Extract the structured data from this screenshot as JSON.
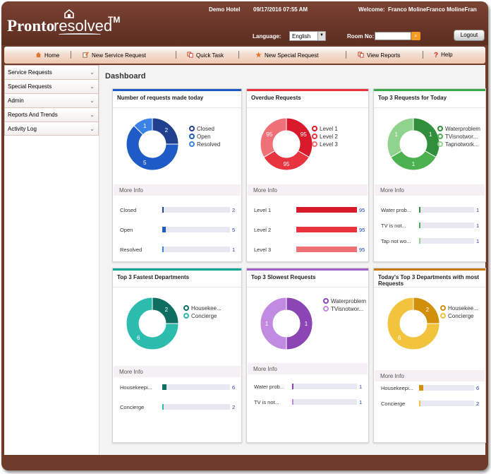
{
  "header": {
    "hotel": "Demo Hotel",
    "datetime": "09/17/2016 07:55 AM",
    "welcome_label": "Welcome:",
    "user": "Franco MolineFranco MolineFran",
    "logo_main": "Pronto",
    "logo_sub": "resolved",
    "logo_tm": "TM",
    "language_label": "Language:",
    "language_value": "English",
    "room_label": "Room No:",
    "room_value": "",
    "logout": "Logout"
  },
  "nav": [
    {
      "label": "Home",
      "icon": "home-icon"
    },
    {
      "label": "New Service Request",
      "icon": "edit-icon"
    },
    {
      "label": "Quick Task",
      "icon": "copy-icon"
    },
    {
      "label": "New Special Request",
      "icon": "star-icon"
    },
    {
      "label": "View Reports",
      "icon": "report-icon"
    },
    {
      "label": "Help",
      "icon": "help-icon"
    }
  ],
  "sidebar": [
    "Service Requests",
    "Special Requests",
    "Admin",
    "Reports And Trends",
    "Activity Log"
  ],
  "page_title": "Dashboard",
  "more_info": "More Info",
  "colors": {
    "blue": "#1e5bc6",
    "red": "#e8343f",
    "green": "#3ca84a",
    "teal": "#0e8b7a",
    "purple": "#a25fc7",
    "orange": "#ecaa16"
  },
  "cards": [
    {
      "title": "Number of requests made today",
      "accent": "#1e5bc6",
      "legend": [
        "Closed",
        "Open",
        "Resolved"
      ],
      "legend_colors": [
        "#1f3f8f",
        "#1e5bc6",
        "#3b82e6"
      ],
      "donut_labels": [
        "2",
        "5",
        "1"
      ],
      "bars": [
        {
          "label": "Closed",
          "value": "2"
        },
        {
          "label": "Open",
          "value": "5"
        },
        {
          "label": "Resolved",
          "value": "1"
        }
      ]
    },
    {
      "title": "Overdue Requests",
      "accent": "#e8343f",
      "legend": [
        "Level 1",
        "Level 2",
        "Level 3"
      ],
      "legend_colors": [
        "#d91a2a",
        "#e8343f",
        "#f07077"
      ],
      "donut_labels": [
        "95",
        "95",
        "95"
      ],
      "bars": [
        {
          "label": "Level 1",
          "value": "95"
        },
        {
          "label": "Level 2",
          "value": "95"
        },
        {
          "label": "Level 3",
          "value": "95"
        }
      ]
    },
    {
      "title": "Top 3 Requests for Today",
      "accent": "#3ca84a",
      "legend": [
        "Waterproblem",
        "TVisnotwor...",
        "Tapnotwork..."
      ],
      "legend_colors": [
        "#2f8f3a",
        "#4bb24f",
        "#8fd38f"
      ],
      "donut_labels": [
        "1",
        "1",
        "1"
      ],
      "bars": [
        {
          "label": "Water prob...",
          "value": "1"
        },
        {
          "label": "TV is not...",
          "value": "1"
        },
        {
          "label": "Tap not wo...",
          "value": "1"
        }
      ]
    },
    {
      "title": "Top 3 Fastest Departments",
      "accent": "#0ea597",
      "legend": [
        "Housekee...",
        "Concierge"
      ],
      "legend_colors": [
        "#0e6e60",
        "#2cbcad"
      ],
      "donut_labels": [
        "2",
        "6"
      ],
      "bars": [
        {
          "label": "Housekeepi...",
          "value": "6"
        },
        {
          "label": "Concierge",
          "value": "2"
        }
      ]
    },
    {
      "title": "Top 3 Slowest Requests",
      "accent": "#a25fc7",
      "legend": [
        "Waterproblem",
        "TVisnotwor..."
      ],
      "legend_colors": [
        "#8b45b5",
        "#c08be0"
      ],
      "donut_labels": [
        "1",
        "1"
      ],
      "bars": [
        {
          "label": "Water prob...",
          "value": "1"
        },
        {
          "label": "TV is not...",
          "value": "1"
        }
      ]
    },
    {
      "title": "Today's Top 3 Departments with most Requests",
      "accent": "#c87a10",
      "legend": [
        "Housekee...",
        "Concierge"
      ],
      "legend_colors": [
        "#d28f0a",
        "#f2c33c"
      ],
      "donut_labels": [
        "2",
        "6"
      ],
      "bars": [
        {
          "label": "Housekeepi...",
          "value": "6"
        },
        {
          "label": "Concierge",
          "value": "2"
        }
      ]
    }
  ]
}
